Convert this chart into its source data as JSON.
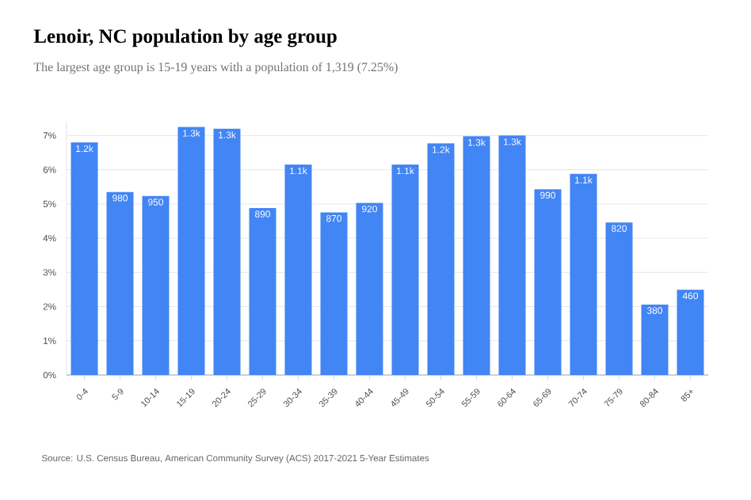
{
  "chart_data": {
    "type": "bar",
    "title": "Lenoir, NC population by age group",
    "subtitle": "The largest age group is 15-19 years with a population of 1,319 (7.25%)",
    "categories": [
      "0-4",
      "5-9",
      "10-14",
      "15-19",
      "20-24",
      "25-29",
      "30-34",
      "35-39",
      "40-44",
      "45-49",
      "50-54",
      "55-59",
      "60-64",
      "65-69",
      "70-74",
      "75-79",
      "80-84",
      "85+"
    ],
    "values": [
      6.8,
      5.35,
      5.23,
      7.25,
      7.2,
      4.88,
      6.15,
      4.75,
      5.03,
      6.15,
      6.77,
      6.98,
      7.0,
      5.43,
      5.88,
      4.46,
      2.06,
      2.49
    ],
    "color": "#4285f4",
    "ylim": [
      0,
      7.4
    ],
    "yticks": [
      {
        "value": 0,
        "label": "0%"
      },
      {
        "value": 1,
        "label": "1%"
      },
      {
        "value": 2,
        "label": "2%"
      },
      {
        "value": 3,
        "label": "3%"
      },
      {
        "value": 4,
        "label": "4%"
      },
      {
        "value": 5,
        "label": "5%"
      },
      {
        "value": 6,
        "label": "6%"
      },
      {
        "value": 7,
        "label": "7%"
      }
    ],
    "grid": "y",
    "annotations": [
      {
        "text": "1.2k",
        "x": "0-4",
        "y": 6.8
      },
      {
        "text": "980",
        "x": "5-9",
        "y": 5.35
      },
      {
        "text": "950",
        "x": "10-14",
        "y": 5.23
      },
      {
        "text": "1.3k",
        "x": "15-19",
        "y": 7.25
      },
      {
        "text": "1.3k",
        "x": "20-24",
        "y": 7.2
      },
      {
        "text": "890",
        "x": "25-29",
        "y": 4.88
      },
      {
        "text": "1.1k",
        "x": "30-34",
        "y": 6.15
      },
      {
        "text": "870",
        "x": "35-39",
        "y": 4.75
      },
      {
        "text": "920",
        "x": "40-44",
        "y": 5.03
      },
      {
        "text": "1.1k",
        "x": "45-49",
        "y": 6.15
      },
      {
        "text": "1.2k",
        "x": "50-54",
        "y": 6.77
      },
      {
        "text": "1.3k",
        "x": "55-59",
        "y": 6.98
      },
      {
        "text": "1.3k",
        "x": "60-64",
        "y": 7.0
      },
      {
        "text": "990",
        "x": "65-69",
        "y": 5.43
      },
      {
        "text": "1.1k",
        "x": "70-74",
        "y": 5.88
      },
      {
        "text": "820",
        "x": "75-79",
        "y": 4.46
      },
      {
        "text": "380",
        "x": "80-84",
        "y": 2.06
      },
      {
        "text": "460",
        "x": "85+",
        "y": 2.49
      },
      "Source: U.S. Census Bureau, American Community Survey (ACS) 2017-2021 5-Year Estimates"
    ]
  }
}
